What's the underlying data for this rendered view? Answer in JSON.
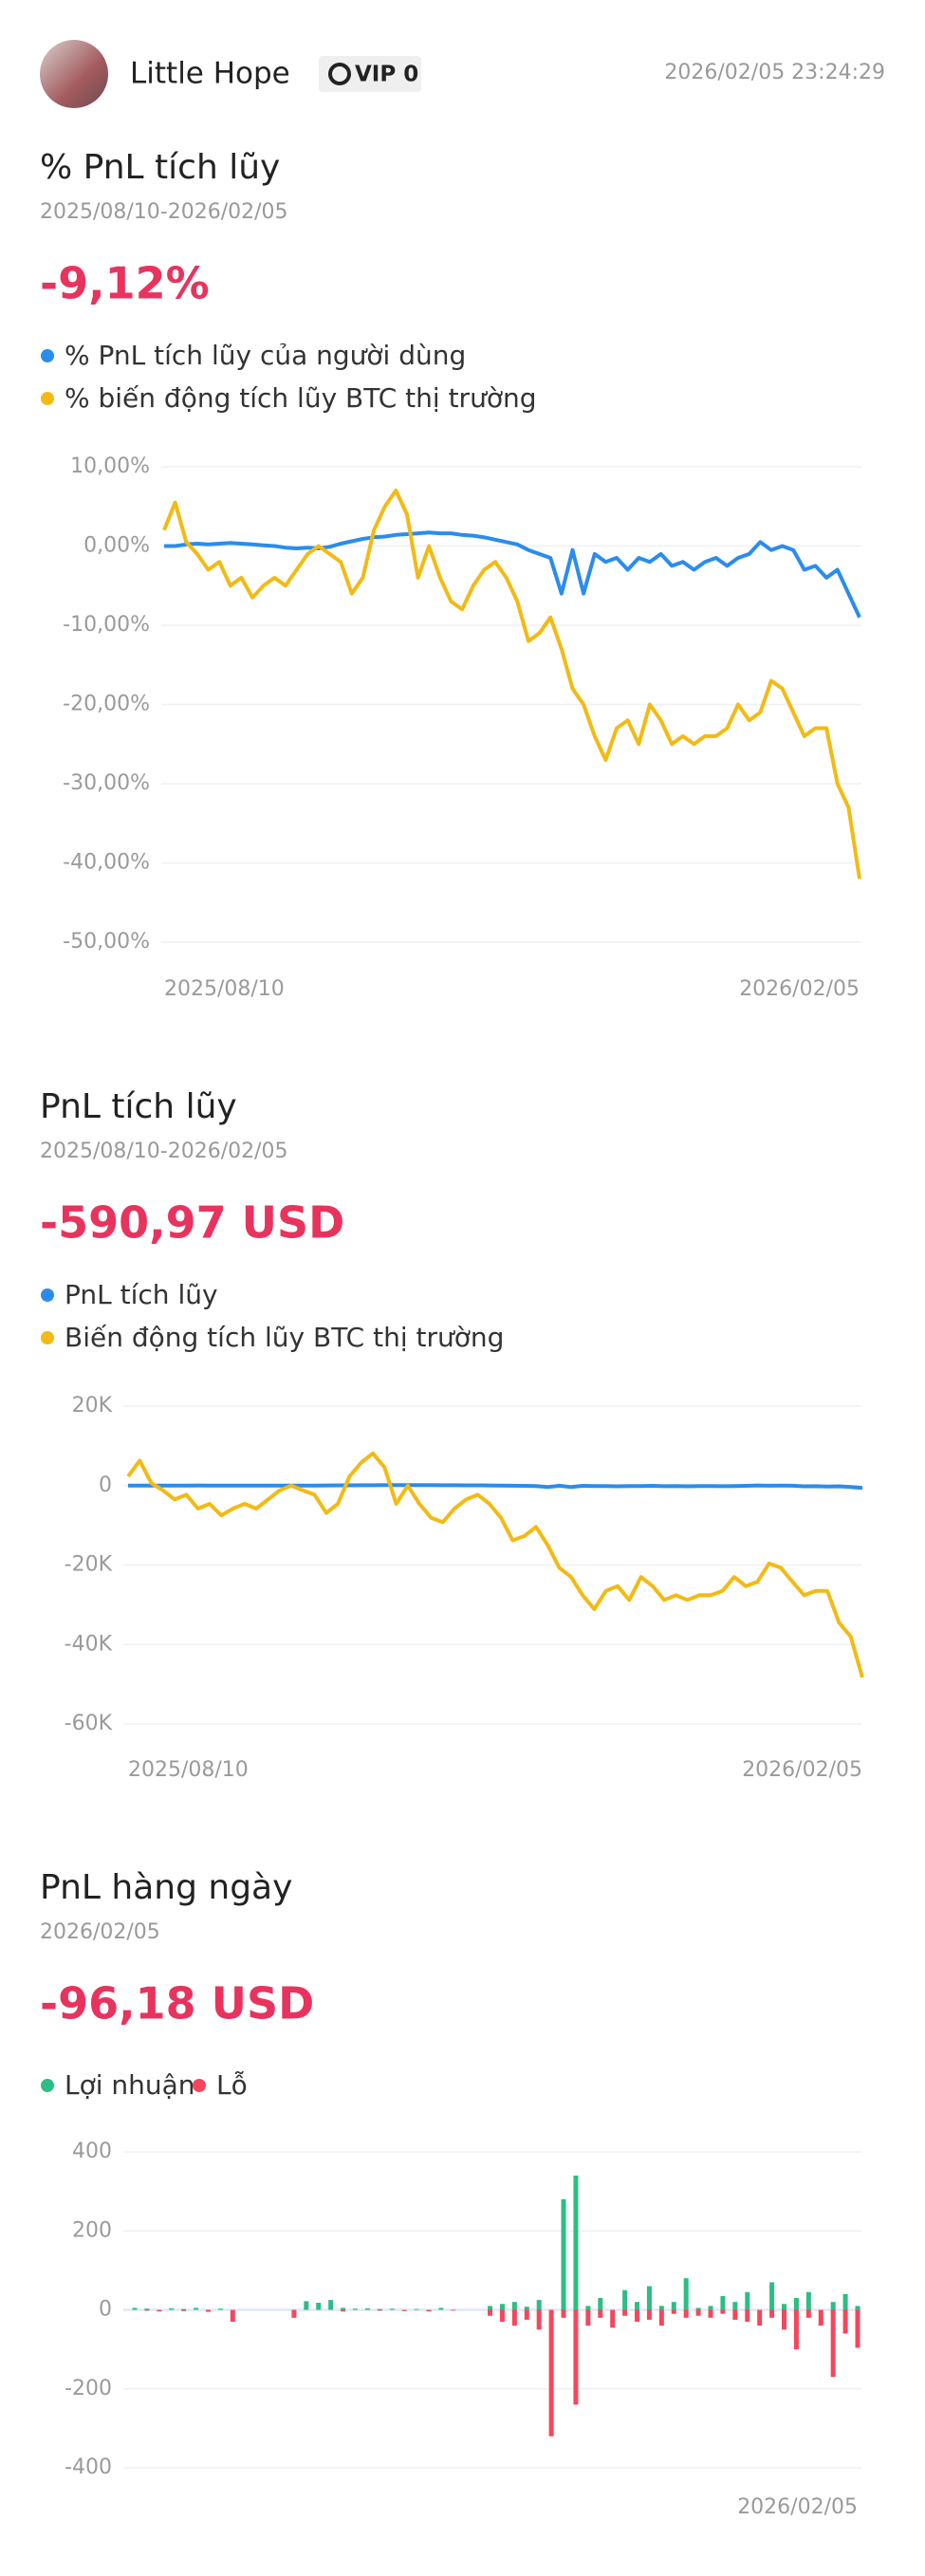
{
  "header": {
    "name": "Little Hope",
    "vip": "VIP 0",
    "timestamp": "2026/02/05 23:24:29"
  },
  "chart_data": [
    {
      "type": "line",
      "title": "% PnL tích lũy",
      "date_range": "2025/08/10-2026/02/05",
      "headline": "-9,12%",
      "categories": [
        "2025/08/10",
        null,
        null,
        null,
        null,
        null,
        null,
        null,
        null,
        null,
        null,
        null,
        null,
        null,
        null,
        null,
        null,
        null,
        null,
        null,
        null,
        null,
        null,
        null,
        null,
        null,
        null,
        null,
        null,
        null,
        null,
        null,
        null,
        null,
        null,
        null,
        null,
        null,
        null,
        null,
        null,
        null,
        null,
        null,
        null,
        null,
        null,
        null,
        null,
        null,
        null,
        null,
        null,
        null,
        null,
        null,
        null,
        null,
        null,
        null,
        null,
        null,
        null,
        "2026/02/05"
      ],
      "series": [
        {
          "name": "% PnL tích lũy của người dùng",
          "color": "#2b8ced",
          "values": [
            0,
            0,
            0.2,
            0.3,
            0.2,
            0.3,
            0.4,
            0.3,
            0.2,
            0.1,
            0,
            -0.2,
            -0.3,
            -0.2,
            -0.3,
            -0.1,
            0.3,
            0.6,
            0.9,
            1.1,
            1.2,
            1.4,
            1.5,
            1.6,
            1.7,
            1.6,
            1.6,
            1.4,
            1.3,
            1.1,
            0.8,
            0.5,
            0.2,
            -0.5,
            -1,
            -1.5,
            -6,
            -0.5,
            -6,
            -1,
            -2,
            -1.5,
            -3,
            -1.5,
            -2,
            -1,
            -2.5,
            -2,
            -3,
            -2,
            -1.5,
            -2.5,
            -1.5,
            -1,
            0.5,
            -0.5,
            0,
            -0.5,
            -3,
            -2.5,
            -4,
            -3,
            -6,
            -9
          ]
        },
        {
          "name": "% biến động tích lũy BTC thị trường",
          "color": "#f3ba14",
          "values": [
            2,
            5.5,
            0.5,
            -1,
            -3,
            -2,
            -5,
            -4,
            -6.5,
            -5,
            -4,
            -5,
            -3,
            -1,
            0,
            -1,
            -2,
            -6,
            -4,
            2,
            5,
            7,
            4,
            -4,
            0,
            -4,
            -7,
            -8,
            -5,
            -3,
            -2,
            -4,
            -7,
            -12,
            -11,
            -9,
            -13,
            -18,
            -20,
            -24,
            -27,
            -23,
            -22,
            -25,
            -20,
            -22,
            -25,
            -24,
            -25,
            -24,
            -24,
            -23,
            -20,
            -22,
            -21,
            -17,
            -18,
            -21,
            -24,
            -23,
            -23,
            -30,
            -33,
            -42
          ]
        }
      ],
      "ylim": [
        -50,
        10
      ],
      "yticks": [
        {
          "value": 10,
          "label": "10,00%"
        },
        {
          "value": 0,
          "label": "0,00%"
        },
        {
          "value": -10,
          "label": "-10,00%"
        },
        {
          "value": -20,
          "label": "-20,00%"
        },
        {
          "value": -30,
          "label": "-30,00%"
        },
        {
          "value": -40,
          "label": "-40,00%"
        },
        {
          "value": -50,
          "label": "-50,00%"
        }
      ],
      "grid": true,
      "legend": "top-left"
    },
    {
      "type": "line",
      "title": "PnL tích lũy",
      "date_range": "2025/08/10-2026/02/05",
      "headline": "-590,97 USD",
      "categories": [
        "2025/08/10",
        null,
        null,
        null,
        null,
        null,
        null,
        null,
        null,
        null,
        null,
        null,
        null,
        null,
        null,
        null,
        null,
        null,
        null,
        null,
        null,
        null,
        null,
        null,
        null,
        null,
        null,
        null,
        null,
        null,
        null,
        null,
        null,
        null,
        null,
        null,
        null,
        null,
        null,
        null,
        null,
        null,
        null,
        null,
        null,
        null,
        null,
        null,
        null,
        null,
        null,
        null,
        null,
        null,
        null,
        null,
        null,
        null,
        null,
        null,
        null,
        null,
        null,
        "2026/02/05"
      ],
      "series": [
        {
          "name": "PnL tích lũy",
          "color": "#2b8ced",
          "values": [
            0,
            0,
            10,
            20,
            10,
            20,
            30,
            20,
            10,
            0,
            0,
            -10,
            -20,
            -10,
            -20,
            0,
            20,
            40,
            60,
            70,
            80,
            90,
            100,
            110,
            110,
            100,
            100,
            90,
            80,
            70,
            50,
            30,
            10,
            -30,
            -60,
            -100,
            -380,
            -30,
            -380,
            -60,
            -130,
            -100,
            -190,
            -100,
            -130,
            -60,
            -160,
            -130,
            -190,
            -130,
            -100,
            -160,
            -100,
            -60,
            30,
            -30,
            0,
            -30,
            -190,
            -160,
            -260,
            -190,
            -380,
            -591
          ]
        },
        {
          "name": "Biến động tích lũy BTC thị trường",
          "color": "#f3ba14",
          "values": [
            2300,
            6300,
            600,
            -1200,
            -3500,
            -2300,
            -5800,
            -4600,
            -7500,
            -5800,
            -4600,
            -5800,
            -3500,
            -1200,
            0,
            -1200,
            -2300,
            -6900,
            -4600,
            2300,
            5800,
            8100,
            4600,
            -4600,
            0,
            -4600,
            -8100,
            -9200,
            -5800,
            -3500,
            -2300,
            -4600,
            -8100,
            -13800,
            -12700,
            -10400,
            -15000,
            -20700,
            -23000,
            -27600,
            -31100,
            -26500,
            -25300,
            -28800,
            -23000,
            -25300,
            -28800,
            -27600,
            -28800,
            -27600,
            -27600,
            -26500,
            -23000,
            -25300,
            -24200,
            -19600,
            -20700,
            -24200,
            -27600,
            -26500,
            -26500,
            -34500,
            -38000,
            -48300
          ]
        }
      ],
      "ylim": [
        -60000,
        20000
      ],
      "yticks": [
        {
          "value": 20000,
          "label": "20K"
        },
        0,
        {
          "value": -20000,
          "label": "-20K"
        },
        {
          "value": -40000,
          "label": "-40K"
        },
        {
          "value": -60000,
          "label": "-60K"
        }
      ],
      "grid": true,
      "legend": "top-left"
    },
    {
      "type": "bar",
      "title": "PnL hàng ngày",
      "date_range": "2026/02/05",
      "headline": "-96,18 USD",
      "categories": [
        null,
        null,
        null,
        null,
        null,
        null,
        null,
        null,
        null,
        null,
        null,
        null,
        null,
        null,
        null,
        null,
        null,
        null,
        null,
        null,
        null,
        null,
        null,
        null,
        null,
        null,
        null,
        null,
        null,
        null,
        null,
        null,
        null,
        null,
        null,
        null,
        null,
        null,
        null,
        null,
        null,
        null,
        null,
        null,
        null,
        null,
        null,
        null,
        null,
        null,
        null,
        null,
        null,
        null,
        null,
        null,
        null,
        null,
        null,
        "2026/02/05"
      ],
      "series": [
        {
          "name": "Lợi nhuận",
          "color": "#2ebd85",
          "values": [
            5,
            3,
            0,
            4,
            2,
            5,
            0,
            3,
            0,
            0,
            0,
            0,
            0,
            0,
            22,
            18,
            25,
            5,
            3,
            4,
            2,
            3,
            0,
            2,
            0,
            5,
            0,
            0,
            0,
            10,
            15,
            20,
            8,
            25,
            0,
            280,
            340,
            10,
            30,
            0,
            50,
            20,
            60,
            10,
            20,
            80,
            5,
            10,
            35,
            20,
            45,
            0,
            70,
            15,
            30,
            45,
            0,
            20,
            40,
            10
          ]
        },
        {
          "name": "Lỗ",
          "color": "#f6465d",
          "values": [
            0,
            -2,
            -4,
            0,
            -3,
            0,
            -5,
            0,
            -30,
            0,
            0,
            0,
            0,
            -20,
            0,
            0,
            0,
            -4,
            0,
            0,
            -2,
            0,
            -3,
            0,
            -4,
            0,
            -2,
            0,
            0,
            -15,
            -30,
            -40,
            -25,
            -50,
            -320,
            -20,
            -240,
            -40,
            -20,
            -45,
            -15,
            -30,
            -25,
            -40,
            -10,
            -20,
            -15,
            -20,
            -10,
            -25,
            -30,
            -40,
            -20,
            -50,
            -100,
            -20,
            -40,
            -170,
            -60,
            -96
          ]
        }
      ],
      "ylim": [
        -400,
        400
      ],
      "yticks": [
        400,
        200,
        0,
        -200,
        -400
      ],
      "grid": true,
      "legend": "top-left"
    }
  ]
}
